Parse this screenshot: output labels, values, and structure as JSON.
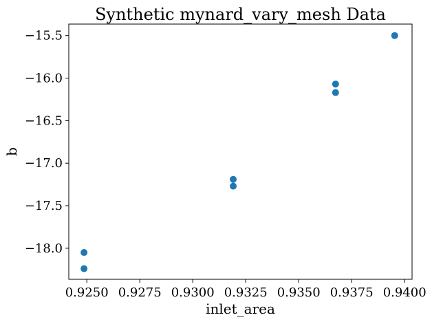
{
  "chart_data": {
    "type": "scatter",
    "title": "Synthetic mynard_vary_mesh Data",
    "xlabel": "inlet_area",
    "ylabel": "b",
    "xlim": [
      0.92415,
      0.94035
    ],
    "ylim": [
      -18.365,
      -15.365
    ],
    "xticks": [
      0.925,
      0.9275,
      0.93,
      0.9325,
      0.935,
      0.9375,
      0.94
    ],
    "xtick_labels": [
      "0.9250",
      "0.9275",
      "0.9300",
      "0.9325",
      "0.9350",
      "0.9375",
      "0.9400"
    ],
    "yticks": [
      -15.5,
      -16.0,
      -16.5,
      -17.0,
      -17.5,
      -18.0
    ],
    "ytick_labels": [
      "−15.5",
      "−16.0",
      "−16.5",
      "−17.0",
      "−17.5",
      "−18.0"
    ],
    "grid": false,
    "marker_color": "#1f77b4",
    "points": [
      {
        "x": 0.92487,
        "y": -18.05
      },
      {
        "x": 0.92487,
        "y": -18.24
      },
      {
        "x": 0.93191,
        "y": -17.19
      },
      {
        "x": 0.93191,
        "y": -17.27
      },
      {
        "x": 0.93674,
        "y": -16.07
      },
      {
        "x": 0.93674,
        "y": -16.17
      },
      {
        "x": 0.93953,
        "y": -15.5
      }
    ]
  }
}
